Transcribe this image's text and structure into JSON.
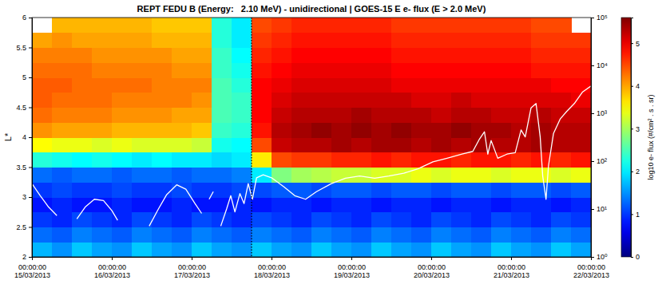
{
  "chart_data": {
    "type": "heatmap",
    "title": "REPT FEDU B (Energy:   2.10 MeV) - unidirectional | GOES-15 E e- flux (E > 2.0 MeV)",
    "y_label": "L*",
    "xlim": [
      "2013-03-15T00:00:00",
      "2013-03-22T00:00:00"
    ],
    "xticks": [
      {
        "value": "2013-03-15T00:00:00",
        "label": "00:00:00\n15/03/2013"
      },
      {
        "value": "2013-03-16T00:00:00",
        "label": "00:00:00\n16/03/2013"
      },
      {
        "value": "2013-03-17T00:00:00",
        "label": "00:00:00\n17/03/2013"
      },
      {
        "value": "2013-03-18T00:00:00",
        "label": "00:00:00\n18/03/2013"
      },
      {
        "value": "2013-03-19T00:00:00",
        "label": "00:00:00\n19/03/2013"
      },
      {
        "value": "2013-03-20T00:00:00",
        "label": "00:00:00\n20/03/2013"
      },
      {
        "value": "2013-03-21T00:00:00",
        "label": "00:00:00\n21/03/2013"
      },
      {
        "value": "2013-03-22T00:00:00",
        "label": "00:00:00\n22/03/2013"
      }
    ],
    "ylim": [
      2,
      6
    ],
    "yticks": [
      2,
      2.5,
      3,
      3.5,
      4,
      4.5,
      5,
      5.5,
      6
    ],
    "y2lim": [
      1,
      100000
    ],
    "y2ticks": [
      {
        "value": 1,
        "label": "10⁰"
      },
      {
        "value": 10,
        "label": "10¹"
      },
      {
        "value": 100,
        "label": "10²"
      },
      {
        "value": 1000,
        "label": "10³"
      },
      {
        "value": 10000,
        "label": "10⁴"
      },
      {
        "value": 100000,
        "label": "10⁵"
      }
    ],
    "heatmap": {
      "x_edges": [
        "2013-03-15T00:00:00",
        "2013-03-15T06:00:00",
        "2013-03-15T12:00:00",
        "2013-03-15T18:00:00",
        "2013-03-16T00:00:00",
        "2013-03-16T06:00:00",
        "2013-03-16T12:00:00",
        "2013-03-16T18:00:00",
        "2013-03-17T00:00:00",
        "2013-03-17T06:00:00",
        "2013-03-17T12:00:00",
        "2013-03-17T18:00:00",
        "2013-03-18T00:00:00",
        "2013-03-18T06:00:00",
        "2013-03-18T12:00:00",
        "2013-03-18T18:00:00",
        "2013-03-19T00:00:00",
        "2013-03-19T06:00:00",
        "2013-03-19T12:00:00",
        "2013-03-19T18:00:00",
        "2013-03-20T00:00:00",
        "2013-03-20T06:00:00",
        "2013-03-20T12:00:00",
        "2013-03-20T18:00:00",
        "2013-03-21T00:00:00",
        "2013-03-21T06:00:00",
        "2013-03-21T12:00:00",
        "2013-03-21T18:00:00",
        "2013-03-22T00:00:00"
      ],
      "y_edges": [
        2,
        2.25,
        2.5,
        2.75,
        3,
        3.25,
        3.5,
        3.75,
        4,
        4.25,
        4.5,
        4.75,
        5,
        5.25,
        5.5,
        5.75,
        6
      ],
      "z": [
        [
          1.7,
          1.5,
          1.8,
          1.6,
          1.5,
          1.8,
          1.6,
          1.5,
          1.8,
          1.6,
          1.5,
          1.8,
          1.6,
          1.5,
          1.8,
          1.6,
          1.5,
          1.8,
          1.6,
          1.5,
          1.8,
          1.6,
          1.5,
          1.8,
          1.6,
          1.5,
          1.8,
          1.6
        ],
        [
          1.3,
          1.2,
          1.4,
          1.3,
          1.2,
          1.4,
          1.3,
          1.2,
          1.4,
          1.3,
          1.2,
          1.4,
          1.3,
          1.2,
          1.4,
          1.3,
          1.2,
          1.4,
          1.3,
          1.2,
          1.4,
          1.3,
          1.2,
          1.4,
          1.3,
          1.2,
          1.4,
          1.3
        ],
        [
          1.0,
          0.9,
          1.1,
          1.0,
          0.9,
          1.1,
          1.0,
          0.9,
          1.1,
          1.0,
          0.9,
          1.1,
          1.0,
          0.9,
          1.1,
          1.0,
          0.9,
          1.1,
          1.0,
          0.9,
          1.1,
          1.0,
          0.9,
          1.1,
          1.0,
          0.9,
          1.1,
          1.0
        ],
        [
          0.8,
          0.9,
          0.8,
          0.8,
          0.9,
          0.8,
          0.8,
          0.9,
          0.8,
          0.8,
          0.9,
          0.8,
          0.9,
          0.9,
          0.8,
          0.9,
          0.9,
          0.8,
          0.9,
          0.9,
          0.8,
          0.9,
          0.9,
          0.8,
          0.9,
          0.9,
          0.8,
          0.9
        ],
        [
          1.0,
          1.1,
          1.0,
          1.0,
          1.1,
          1.0,
          1.0,
          1.1,
          1.0,
          1.0,
          1.1,
          1.1,
          1.2,
          1.2,
          1.1,
          1.2,
          1.2,
          1.1,
          1.2,
          1.2,
          1.1,
          1.2,
          1.2,
          1.1,
          1.2,
          1.2,
          1.1,
          1.2
        ],
        [
          1.3,
          1.2,
          1.3,
          1.3,
          1.2,
          1.3,
          1.3,
          1.2,
          1.3,
          1.3,
          1.4,
          2.0,
          2.8,
          3.0,
          3.1,
          3.2,
          3.2,
          3.3,
          3.3,
          3.4,
          3.3,
          3.4,
          3.4,
          3.3,
          3.4,
          3.4,
          3.3,
          3.4
        ],
        [
          2.3,
          2.2,
          2.1,
          2.2,
          2.1,
          2.0,
          2.1,
          2.0,
          2.0,
          1.9,
          2.0,
          3.6,
          4.5,
          4.6,
          4.6,
          4.7,
          4.7,
          4.8,
          4.7,
          4.8,
          4.8,
          4.7,
          4.8,
          4.8,
          4.7,
          4.8,
          4.7,
          4.8
        ],
        [
          3.5,
          3.4,
          3.4,
          3.3,
          3.4,
          3.3,
          3.3,
          3.3,
          3.2,
          2.2,
          2.1,
          4.5,
          5.2,
          5.3,
          5.3,
          5.4,
          5.3,
          5.4,
          5.4,
          5.3,
          5.4,
          5.3,
          5.4,
          5.3,
          5.3,
          5.4,
          5.3,
          5.3
        ],
        [
          4.1,
          4.0,
          4.0,
          4.0,
          3.9,
          3.9,
          3.9,
          3.9,
          3.8,
          2.4,
          2.3,
          4.8,
          5.3,
          5.4,
          5.5,
          5.4,
          5.5,
          5.4,
          5.5,
          5.4,
          5.4,
          5.5,
          5.4,
          5.4,
          5.3,
          5.4,
          5.3,
          5.3
        ],
        [
          4.3,
          4.2,
          4.2,
          4.2,
          4.1,
          4.1,
          4.1,
          4.0,
          4.0,
          2.5,
          2.4,
          4.9,
          5.2,
          5.3,
          5.3,
          5.3,
          5.4,
          5.3,
          5.3,
          5.3,
          5.2,
          5.3,
          5.3,
          5.2,
          5.2,
          5.3,
          5.2,
          5.2
        ],
        [
          4.4,
          4.3,
          4.3,
          4.3,
          4.2,
          4.2,
          4.2,
          4.2,
          4.1,
          2.5,
          2.4,
          4.9,
          5.1,
          5.2,
          5.2,
          5.2,
          5.2,
          5.2,
          5.2,
          5.1,
          5.1,
          5.2,
          5.1,
          5.1,
          5.1,
          5.1,
          5.1,
          5.0
        ],
        [
          4.4,
          4.4,
          4.3,
          4.3,
          4.3,
          4.3,
          4.2,
          4.2,
          4.2,
          2.5,
          2.3,
          4.9,
          5.0,
          5.1,
          5.1,
          5.1,
          5.1,
          5.1,
          5.0,
          5.0,
          5.0,
          5.0,
          5.0,
          5.0,
          5.0,
          5.0,
          4.9,
          4.9
        ],
        [
          4.3,
          4.3,
          4.3,
          4.2,
          4.2,
          4.2,
          4.2,
          4.1,
          4.1,
          2.4,
          2.2,
          4.8,
          4.9,
          5.0,
          5.0,
          5.0,
          5.0,
          5.0,
          4.9,
          4.9,
          4.9,
          4.9,
          4.9,
          4.9,
          4.9,
          4.8,
          4.8,
          4.8
        ],
        [
          4.2,
          4.2,
          4.2,
          4.1,
          4.1,
          4.1,
          4.1,
          4.0,
          4.0,
          2.4,
          2.1,
          4.7,
          4.8,
          4.9,
          4.9,
          4.9,
          4.9,
          4.9,
          4.8,
          4.8,
          4.8,
          4.8,
          4.8,
          4.8,
          4.8,
          4.7,
          4.7,
          4.7
        ],
        [
          4.0,
          4.1,
          4.0,
          4.0,
          4.0,
          4.0,
          3.9,
          3.9,
          3.9,
          2.3,
          2.0,
          4.6,
          4.7,
          4.8,
          4.8,
          4.8,
          4.8,
          4.8,
          4.7,
          4.7,
          4.7,
          4.7,
          4.7,
          4.7,
          4.7,
          4.6,
          4.6,
          4.6
        ],
        [
          null,
          3.9,
          3.9,
          3.9,
          3.9,
          3.9,
          3.8,
          3.8,
          3.8,
          2.3,
          2.0,
          4.5,
          4.6,
          4.7,
          4.7,
          4.7,
          4.7,
          4.7,
          4.6,
          4.6,
          4.6,
          4.6,
          4.6,
          4.6,
          4.6,
          4.5,
          4.5,
          null
        ]
      ]
    },
    "colorbar": {
      "label": "log10 e- flux (#/cm² . s . sr)",
      "lim": [
        0,
        5.6
      ],
      "ticks": [
        0,
        1,
        2,
        3,
        4,
        5
      ]
    },
    "series": [
      {
        "color": "#ffffff",
        "axis": "y2",
        "x": [
          "2013-03-15T00:00:00",
          "2013-03-15T02:30:00",
          "2013-03-15T05:00:00",
          "2013-03-15T07:30:00",
          "2013-03-15T10:30:00",
          "2013-03-15T13:30:00",
          "2013-03-15T16:00:00",
          "2013-03-15T18:45:00",
          "2013-03-15T21:30:00",
          "2013-03-16T00:00:00",
          "2013-03-16T01:45:00",
          "2013-03-16T06:30:00",
          "2013-03-16T11:15:00",
          "2013-03-16T14:00:00",
          "2013-03-16T16:30:00",
          "2013-03-16T19:30:00",
          "2013-03-16T22:15:00",
          "2013-03-17T01:00:00",
          "2013-03-17T03:00:00",
          "2013-03-17T04:15:00",
          "2013-03-17T05:15:00",
          "2013-03-17T06:30:00",
          "2013-03-17T07:30:00",
          "2013-03-17T08:45:00",
          "2013-03-17T10:30:00",
          "2013-03-17T11:45:00",
          "2013-03-17T13:00:00",
          "2013-03-17T14:30:00",
          "2013-03-17T15:45:00",
          "2013-03-17T17:00:00",
          "2013-03-17T18:15:00",
          "2013-03-17T19:30:00",
          "2013-03-17T21:30:00",
          "2013-03-18T00:00:00",
          "2013-03-18T03:45:00",
          "2013-03-18T07:00:00",
          "2013-03-18T10:15:00",
          "2013-03-18T13:30:00",
          "2013-03-18T18:00:00",
          "2013-03-18T22:15:00",
          "2013-03-19T02:30:00",
          "2013-03-19T07:00:00",
          "2013-03-19T11:15:00",
          "2013-03-19T15:45:00",
          "2013-03-19T20:00:00",
          "2013-03-20T00:30:00",
          "2013-03-20T04:45:00",
          "2013-03-20T09:15:00",
          "2013-03-20T12:30:00",
          "2013-03-20T14:30:00",
          "2013-03-20T16:00:00",
          "2013-03-20T17:00:00",
          "2013-03-20T18:00:00",
          "2013-03-20T20:00:00",
          "2013-03-20T22:45:00",
          "2013-03-21T01:15:00",
          "2013-03-21T03:00:00",
          "2013-03-21T04:15:00",
          "2013-03-21T06:00:00",
          "2013-03-21T07:30:00",
          "2013-03-21T08:45:00",
          "2013-03-21T09:30:00",
          "2013-03-21T10:30:00",
          "2013-03-21T11:15:00",
          "2013-03-21T12:45:00",
          "2013-03-21T14:45:00",
          "2013-03-21T16:45:00",
          "2013-03-21T19:00:00",
          "2013-03-21T21:30:00",
          "2013-03-22T00:00:00"
        ],
        "values": [
          34,
          19,
          11,
          7.3,
          null,
          6.2,
          11,
          16,
          15,
          9.3,
          5.8,
          null,
          4.4,
          10,
          20,
          32,
          26,
          13,
          8.1,
          null,
          16,
          23,
          null,
          4.4,
          10,
          19,
          8.7,
          21,
          13,
          34,
          16,
          45,
          52,
          45,
          29,
          19,
          16,
          23,
          34,
          44,
          49,
          44,
          49,
          56,
          69,
          97,
          115,
          140,
          160,
          290,
          410,
          140,
          270,
          115,
          140,
          150,
          450,
          320,
          1300,
          1600,
          320,
          49,
          16,
          81,
          380,
          760,
          1100,
          1600,
          2800,
          3700
        ]
      }
    ],
    "vertical_line": {
      "x": "2013-03-17T18:00:00",
      "color": "#000000",
      "line_style": "dotted"
    }
  }
}
